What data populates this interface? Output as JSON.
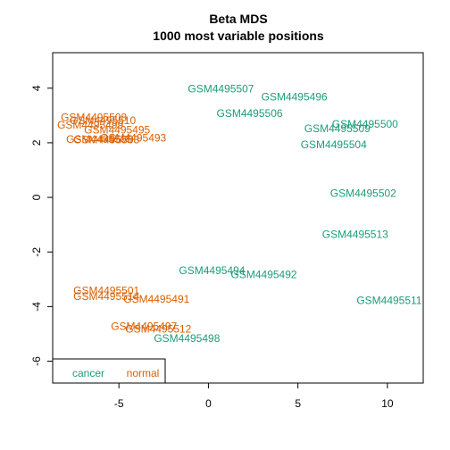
{
  "chart_data": {
    "type": "scatter",
    "title": "Beta MDS",
    "subtitle": "1000 most variable positions",
    "xlabel": "",
    "ylabel": "",
    "xlim": [
      -8.7,
      12
    ],
    "ylim": [
      -6.8,
      5.3
    ],
    "x_ticks": [
      "-5",
      "0",
      "5",
      "10"
    ],
    "y_ticks": [
      "-6",
      "-4",
      "-2",
      "0",
      "2",
      "4"
    ],
    "grid": false,
    "legend": {
      "placement": "bottom-left",
      "orientation": "horizontal"
    },
    "series": [
      {
        "name": "cancer",
        "color": "#1B9E77",
        "points": [
          {
            "label": "GSM4495507",
            "x": 0.7,
            "y": 3.95
          },
          {
            "label": "GSM4495496",
            "x": 4.8,
            "y": 3.65
          },
          {
            "label": "GSM4495506",
            "x": 2.3,
            "y": 3.05
          },
          {
            "label": "GSM4495509",
            "x": 7.2,
            "y": 2.5
          },
          {
            "label": "GSM4495500",
            "x": 8.75,
            "y": 2.65
          },
          {
            "label": "GSM4495504",
            "x": 7.0,
            "y": 1.9
          },
          {
            "label": "GSM4495502",
            "x": 8.65,
            "y": 0.12
          },
          {
            "label": "GSM4495513",
            "x": 8.2,
            "y": -1.38
          },
          {
            "label": "GSM4495494",
            "x": 0.2,
            "y": -2.7
          },
          {
            "label": "GSM4495492",
            "x": 3.1,
            "y": -2.85
          },
          {
            "label": "GSM4495511",
            "x": 10.1,
            "y": -3.8
          },
          {
            "label": "GSM4495498",
            "x": -1.2,
            "y": -5.2
          }
        ]
      },
      {
        "name": "normal",
        "color": "#D95F02",
        "points": [
          {
            "label": "GSM4495508",
            "x": -6.4,
            "y": 2.9
          },
          {
            "label": "GSM4495510",
            "x": -5.9,
            "y": 2.78
          },
          {
            "label": "GSM4495499",
            "x": -6.6,
            "y": 2.62
          },
          {
            "label": "GSM4495495",
            "x": -5.1,
            "y": 2.45
          },
          {
            "label": "GSM4495493",
            "x": -4.2,
            "y": 2.15
          },
          {
            "label": "GSM4495505",
            "x": -6.1,
            "y": 2.1
          },
          {
            "label": "GSM4495503",
            "x": -5.7,
            "y": 2.08
          },
          {
            "label": "GSM4495501",
            "x": -5.7,
            "y": -3.45
          },
          {
            "label": "GSM4495514",
            "x": -5.7,
            "y": -3.65
          },
          {
            "label": "GSM4495491",
            "x": -2.9,
            "y": -3.75
          },
          {
            "label": "GSM4495497",
            "x": -3.6,
            "y": -4.75
          },
          {
            "label": "GSM4495512",
            "x": -2.8,
            "y": -4.85
          }
        ]
      }
    ]
  }
}
